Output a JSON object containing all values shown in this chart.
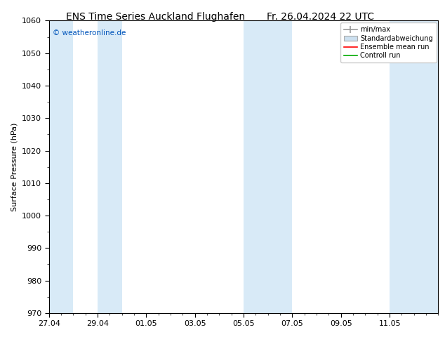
{
  "title_left": "ENS Time Series Auckland Flughafen",
  "title_right": "Fr. 26.04.2024 22 UTC",
  "ylabel": "Surface Pressure (hPa)",
  "ylim": [
    970,
    1060
  ],
  "yticks": [
    970,
    980,
    990,
    1000,
    1010,
    1020,
    1030,
    1040,
    1050,
    1060
  ],
  "xtick_labels": [
    "27.04",
    "29.04",
    "01.05",
    "03.05",
    "05.05",
    "07.05",
    "09.05",
    "11.05"
  ],
  "xmin": 0,
  "xmax": 16,
  "bg_color": "#ffffff",
  "plot_bg_color": "#ffffff",
  "blue_band_color": "#d8eaf7",
  "blue_bands": [
    {
      "x_start": 0.0,
      "x_end": 1.0
    },
    {
      "x_start": 2.0,
      "x_end": 3.0
    },
    {
      "x_start": 8.0,
      "x_end": 10.0
    },
    {
      "x_start": 14.0,
      "x_end": 16.0
    }
  ],
  "copyright_text": "© weatheronline.de",
  "legend_labels": [
    "min/max",
    "Standardabweichung",
    "Ensemble mean run",
    "Controll run"
  ],
  "legend_colors": [
    "#aaaaaa",
    "#cce0f0",
    "#ff0000",
    "#00aa00"
  ],
  "title_fontsize": 10,
  "label_fontsize": 8,
  "tick_fontsize": 8,
  "legend_fontsize": 7
}
